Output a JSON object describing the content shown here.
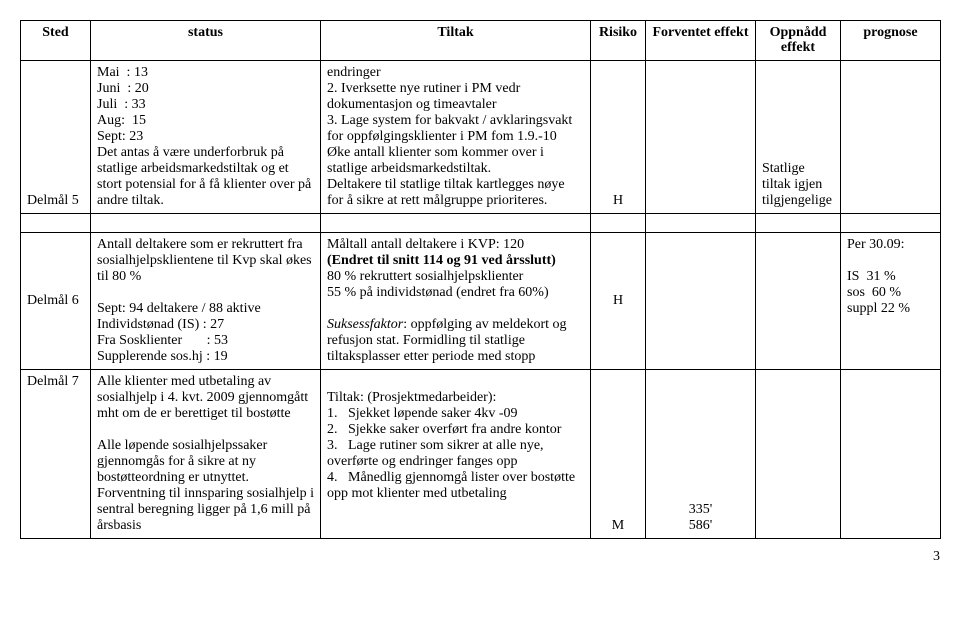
{
  "headers": {
    "sted": "Sted",
    "status": "status",
    "tiltak": "Tiltak",
    "risiko": "Risiko",
    "forventet": "Forventet effekt",
    "oppnadd": "Oppnådd effekt",
    "prognose": "prognose"
  },
  "rows": {
    "r5": {
      "sted": "Delmål 5",
      "status": "Mai  : 13\nJuni  : 20\nJuli  : 33\nAug:  15\nSept: 23\nDet antas å være underforbruk på statlige arbeidsmarkedstiltak og et stort potensial for å få klienter over på andre tiltak.",
      "tiltak": "endringer\n2. Iverksette nye rutiner i PM vedr dokumentasjon og timeavtaler\n3. Lage system for bakvakt / avklaringsvakt for oppfølgingsklienter i PM fom 1.9.-10\nØke antall klienter som kommer over i statlige arbeidsmarkedstiltak.\nDeltakere til statlige tiltak kartlegges nøye for å sikre at rett målgruppe prioriteres.",
      "risiko": "H",
      "forventet": "",
      "oppnadd": "Statlige tiltak igjen tilgjengelige",
      "prognose": ""
    },
    "r6": {
      "sted": "Delmål 6",
      "status": "Antall deltakere som er rekruttert fra sosialhjelpsklientene til Kvp skal økes til 80 %\n\nSept: 94 deltakere / 88 aktive\nIndividstønad (IS) : 27\nFra Sosklienter       : 53\nSupplerende sos.hj : 19",
      "tiltak_line1": "Måltall antall deltakere i KVP: 120",
      "tiltak_line2": "(Endret til snitt 114 og 91 ved årsslutt)",
      "tiltak_rest": "\n80 % rekruttert sosialhjelpsklienter\n55 % på individstønad (endret fra 60%)\n",
      "tiltak_sf_label": "Suksessfaktor",
      "tiltak_sf_rest": ": oppfølging av meldekort og refusjon stat. Formidling til statlige tiltaksplasser etter periode med stopp",
      "risiko": "H",
      "forventet": "",
      "oppnadd": "",
      "prognose": "Per 30.09:\n\nIS  31 %\nsos  60 %\nsuppl 22 %"
    },
    "r7": {
      "sted": "Delmål 7",
      "status": "Alle klienter med utbetaling av sosialhjelp i 4. kvt. 2009 gjennomgått mht om de er berettiget til bostøtte\n\nAlle løpende sosialhjelpssaker gjennomgås for å sikre at ny bostøtteordning er utnyttet. Forventning til innsparing sosialhjelp i sentral beregning ligger på 1,6 mill på årsbasis",
      "tiltak": "\nTiltak: (Prosjektmedarbeider):\n1.   Sjekket løpende saker 4kv -09\n2.   Sjekke saker overført fra andre kontor\n3.   Lage rutiner som sikrer at alle nye, overførte og endringer fanges opp\n4.   Månedlig gjennomgå lister over bostøtte opp mot klienter med utbetaling",
      "risiko": "M",
      "forventet": "335'\n586'",
      "oppnadd": "",
      "prognose": ""
    }
  },
  "page_number": "3"
}
